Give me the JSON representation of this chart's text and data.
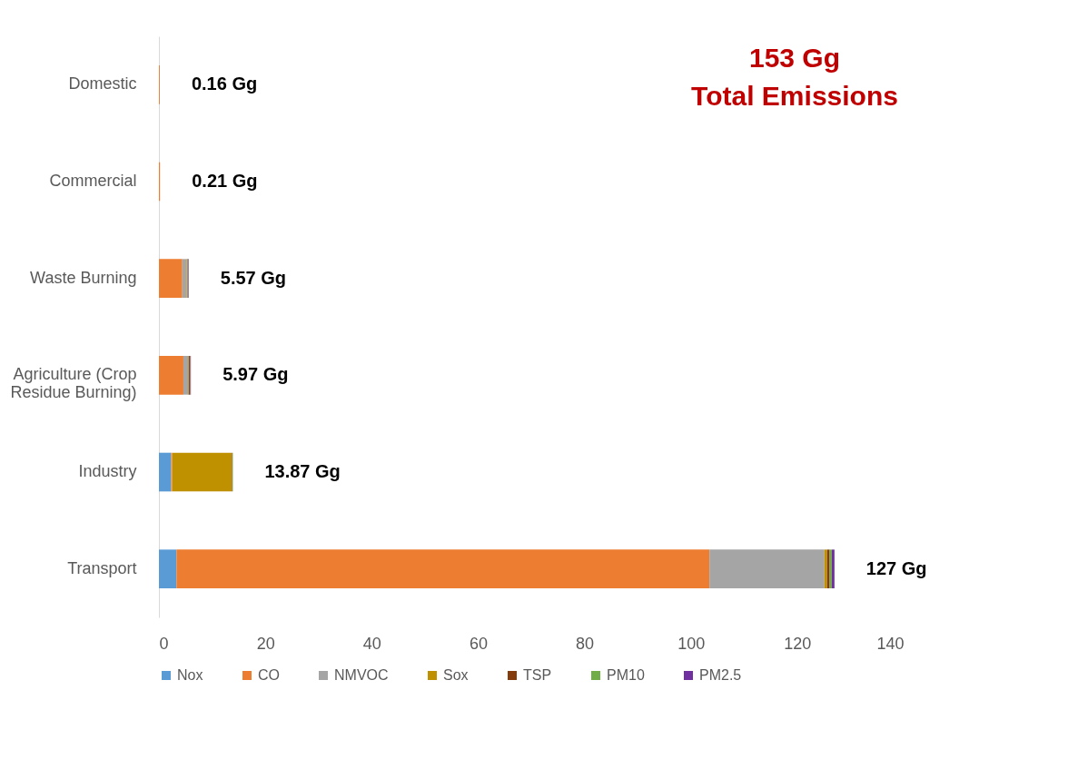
{
  "chart_data": {
    "type": "bar",
    "orientation": "horizontal",
    "stacked": true,
    "categories": [
      "Domestic",
      "Commercial",
      "Waste Burning",
      "Agriculture (Crop Residue Burning)",
      "Industry",
      "Transport"
    ],
    "series": [
      {
        "name": "Nox",
        "color": "#5b9bd5",
        "values": [
          0,
          0,
          0,
          0,
          2.3,
          3.3
        ]
      },
      {
        "name": "CO",
        "color": "#ed7d31",
        "values": [
          0.16,
          0.21,
          4.4,
          4.6,
          0.2,
          100.2
        ]
      },
      {
        "name": "NMVOC",
        "color": "#a5a5a5",
        "values": [
          0,
          0,
          0.8,
          0.9,
          0,
          21.6
        ]
      },
      {
        "name": "Sox",
        "color": "#bf9000",
        "values": [
          0,
          0,
          0.1,
          0.1,
          11.2,
          0.5
        ]
      },
      {
        "name": "TSP",
        "color": "#843c0c",
        "values": [
          0,
          0,
          0.1,
          0.2,
          0.1,
          0.5
        ]
      },
      {
        "name": "PM10",
        "color": "#70ad47",
        "values": [
          0,
          0,
          0.1,
          0.1,
          0.1,
          0.4
        ]
      },
      {
        "name": "PM2.5",
        "color": "#7030a0",
        "values": [
          0,
          0,
          0.1,
          0.1,
          0,
          0.5
        ]
      }
    ],
    "totals": [
      "0.16 Gg",
      "0.21 Gg",
      "5.57 Gg",
      "5.97 Gg",
      "13.87 Gg",
      "127 Gg"
    ],
    "annotations": [
      "153 Gg",
      "Total Emissions"
    ],
    "xlim": [
      0,
      140
    ],
    "xticks": [
      0,
      20,
      40,
      60,
      80,
      100,
      120,
      140
    ],
    "grid": false,
    "legend": "bottom"
  }
}
